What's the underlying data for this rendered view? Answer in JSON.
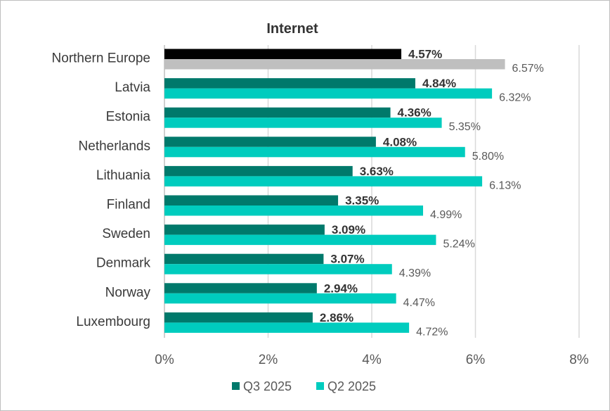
{
  "chart_data": {
    "type": "bar",
    "orientation": "horizontal",
    "title": "Internet",
    "categories": [
      "Northern Europe",
      "Latvia",
      "Estonia",
      "Netherlands",
      "Lithuania",
      "Finland",
      "Sweden",
      "Denmark",
      "Norway",
      "Luxembourg"
    ],
    "series": [
      {
        "name": "Q3 2025",
        "color": "#00796b",
        "highlight_color": "#000000",
        "values": [
          4.57,
          4.84,
          4.36,
          4.08,
          3.63,
          3.35,
          3.09,
          3.07,
          2.94,
          2.86
        ],
        "labels": [
          "4.57%",
          "4.84%",
          "4.36%",
          "4.08%",
          "3.63%",
          "3.35%",
          "3.09%",
          "3.07%",
          "2.94%",
          "2.86%"
        ]
      },
      {
        "name": "Q2 2025",
        "color": "#00ccbe",
        "highlight_color": "#bfbfbf",
        "values": [
          6.57,
          6.32,
          5.35,
          5.8,
          6.13,
          4.99,
          5.24,
          4.39,
          4.47,
          4.72
        ],
        "labels": [
          "6.57%",
          "6.32%",
          "5.35%",
          "5.80%",
          "6.13%",
          "4.99%",
          "5.24%",
          "4.39%",
          "4.47%",
          "4.72%"
        ]
      }
    ],
    "x_ticks": [
      "0%",
      "2%",
      "4%",
      "6%",
      "8%"
    ],
    "xlim": [
      0,
      8
    ],
    "grid": true,
    "legend": "bottom"
  }
}
